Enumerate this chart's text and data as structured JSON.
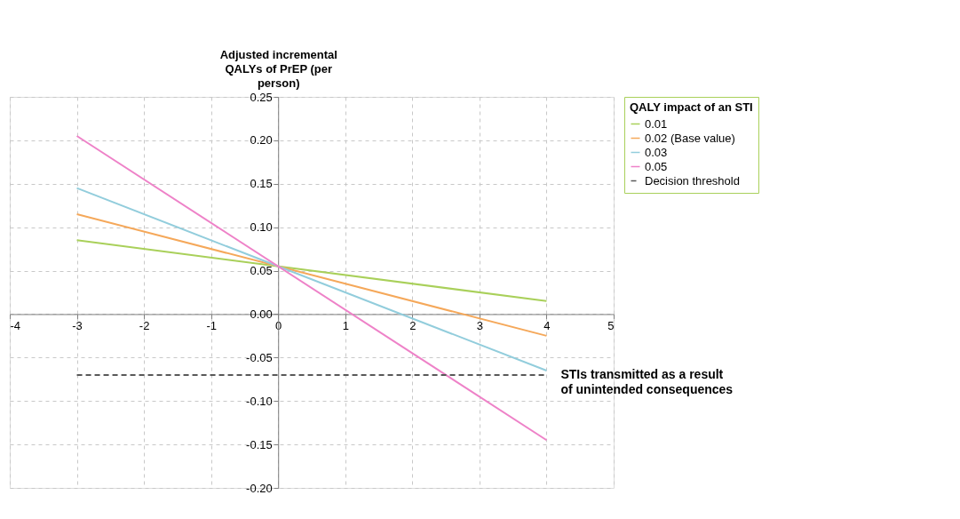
{
  "chart_data": {
    "type": "line",
    "ylabel": "Adjusted incremental QALYs of PrEP (per person)",
    "legend_title": "QALY impact of an STI",
    "x": [
      -3,
      4
    ],
    "series": [
      {
        "name": "0.01",
        "color": "#a9d05a",
        "values": [
          0.085,
          0.015
        ]
      },
      {
        "name": "0.02 (Base value)",
        "color": "#f5a85a",
        "values": [
          0.115,
          -0.025
        ]
      },
      {
        "name": "0.03",
        "color": "#92cddc",
        "values": [
          0.145,
          -0.065
        ]
      },
      {
        "name": "0.05",
        "color": "#ee82c8",
        "values": [
          0.205,
          -0.145
        ]
      },
      {
        "name": "Decision threshold",
        "color": "#595959",
        "line_style": "dashed",
        "values": [
          -0.07,
          -0.07
        ]
      }
    ],
    "annotations": [
      {
        "text": "STIs transmitted as a result of unintended consequences",
        "x": 4,
        "y": -0.07
      }
    ],
    "xlim": [
      -4,
      5
    ],
    "xticks": [
      -4,
      -3,
      -2,
      -1,
      0,
      1,
      2,
      3,
      4,
      5
    ],
    "ylim": [
      -0.2,
      0.25
    ],
    "yticks": [
      {
        "value": -0.2,
        "label": "-0.20"
      },
      {
        "value": -0.15,
        "label": "-0.15"
      },
      {
        "value": -0.1,
        "label": "-0.10"
      },
      {
        "value": -0.05,
        "label": "-0.05"
      },
      {
        "value": 0,
        "label": "0.00"
      },
      {
        "value": 0.05,
        "label": "0.05"
      },
      {
        "value": 0.1,
        "label": "0.10"
      },
      {
        "value": 0.15,
        "label": "0.15"
      },
      {
        "value": 0.2,
        "label": "0.20"
      },
      {
        "value": 0.25,
        "label": "0.25"
      }
    ],
    "grid": true,
    "legend": "top right",
    "line_style": "solid",
    "marker": "none"
  }
}
